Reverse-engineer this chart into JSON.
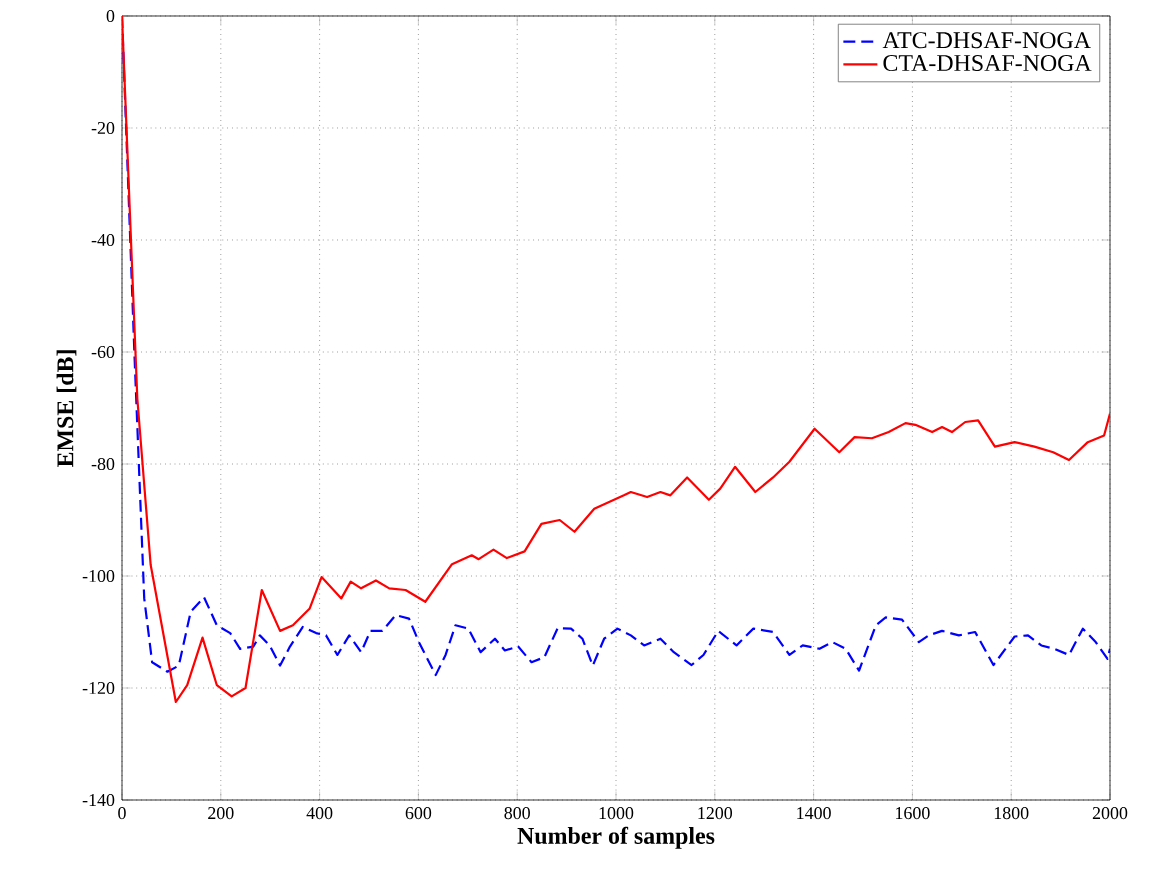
{
  "chart_data": {
    "type": "line",
    "xlabel": "Number of samples",
    "ylabel": "EMSE [dB]",
    "xlim": [
      0,
      2000
    ],
    "ylim": [
      -140,
      0
    ],
    "xticks": [
      0,
      200,
      400,
      600,
      800,
      1000,
      1200,
      1400,
      1600,
      1800,
      2000
    ],
    "yticks": [
      -140,
      -120,
      -100,
      -80,
      -60,
      -40,
      -20,
      0
    ],
    "grid": true,
    "legend": "top right",
    "series": [
      {
        "name": "ATC-DHSAF-NOGA",
        "color": "#0000ff",
        "line_style": "dashed",
        "x": [
          0,
          25,
          45,
          61,
          92,
          115,
          139,
          166,
          192,
          219,
          239,
          266,
          279,
          299,
          320,
          340,
          366,
          393,
          413,
          436,
          460,
          484,
          503,
          527,
          554,
          581,
          601,
          635,
          655,
          675,
          701,
          726,
          755,
          775,
          802,
          829,
          855,
          882,
          909,
          932,
          953,
          976,
          1003,
          1030,
          1057,
          1090,
          1117,
          1153,
          1177,
          1207,
          1244,
          1278,
          1318,
          1351,
          1378,
          1412,
          1438,
          1465,
          1492,
          1526,
          1546,
          1579,
          1613,
          1633,
          1660,
          1694,
          1727,
          1764,
          1807,
          1834,
          1861,
          1887,
          1917,
          1945,
          1971,
          1995,
          2000
        ],
        "values": [
          0,
          -60,
          -104,
          -115.4,
          -117.1,
          -116,
          -106.4,
          -103.8,
          -108.8,
          -110.2,
          -113,
          -112.6,
          -110.6,
          -112.4,
          -116,
          -112.6,
          -109.1,
          -110.2,
          -110.6,
          -114.1,
          -110.6,
          -113.6,
          -109.8,
          -109.8,
          -107,
          -107.6,
          -111.8,
          -117.7,
          -114.1,
          -108.8,
          -109.4,
          -113.6,
          -111.2,
          -113.3,
          -112.6,
          -115.4,
          -114.5,
          -109.3,
          -109.4,
          -111.2,
          -116,
          -111.2,
          -109.4,
          -110.6,
          -112.4,
          -111.2,
          -113.6,
          -115.9,
          -114.1,
          -109.8,
          -112.4,
          -109.4,
          -110,
          -114.1,
          -112.4,
          -113,
          -111.8,
          -113,
          -116.9,
          -108.8,
          -107.4,
          -107.8,
          -111.8,
          -110.6,
          -109.8,
          -110.6,
          -110,
          -115.9,
          -110.8,
          -110.6,
          -112.4,
          -113,
          -114.1,
          -109.4,
          -111.8,
          -114.8,
          -113
        ]
      },
      {
        "name": "CTA-DHSAF-NOGA",
        "color": "#ff0000",
        "line_style": "solid",
        "x": [
          0,
          31,
          58,
          109,
          132,
          163,
          192,
          222,
          250,
          283,
          320,
          346,
          380,
          404,
          444,
          463,
          484,
          514,
          541,
          574,
          614,
          668,
          708,
          722,
          752,
          779,
          815,
          849,
          886,
          916,
          956,
          1016,
          1030,
          1063,
          1090,
          1110,
          1144,
          1188,
          1211,
          1241,
          1282,
          1318,
          1351,
          1402,
          1452,
          1483,
          1518,
          1552,
          1586,
          1606,
          1640,
          1660,
          1680,
          1707,
          1733,
          1767,
          1807,
          1847,
          1885,
          1917,
          1955,
          1988,
          2000
        ],
        "values": [
          0,
          -68.3,
          -98,
          -122.5,
          -119.5,
          -111,
          -119.5,
          -121.5,
          -120,
          -102.5,
          -109.8,
          -108.8,
          -105.8,
          -100.2,
          -104,
          -101,
          -102.2,
          -100.8,
          -102.2,
          -102.5,
          -104.6,
          -97.9,
          -96.3,
          -97,
          -95.3,
          -96.8,
          -95.6,
          -90.7,
          -90,
          -92.1,
          -88,
          -85.6,
          -85,
          -85.9,
          -85,
          -85.6,
          -82.4,
          -86.4,
          -84.4,
          -80.5,
          -85,
          -82.4,
          -79.6,
          -73.7,
          -77.9,
          -75.2,
          -75.4,
          -74.3,
          -72.7,
          -73,
          -74.3,
          -73.4,
          -74.3,
          -72.5,
          -72.2,
          -76.9,
          -76.1,
          -76.9,
          -77.9,
          -79.3,
          -76.1,
          -74.9,
          -71
        ]
      }
    ]
  }
}
